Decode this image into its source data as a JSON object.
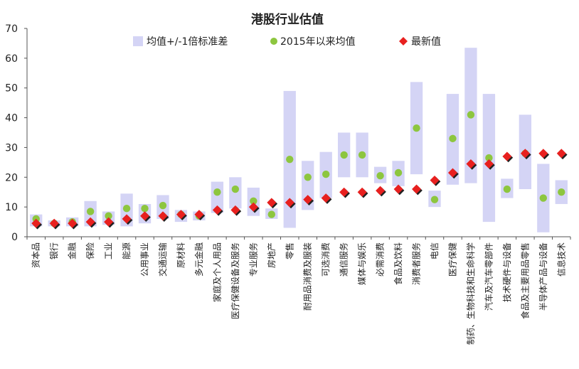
{
  "chart_data": {
    "type": "scatter",
    "title": "港股行业估值",
    "xlabel": "",
    "ylabel": "",
    "ylim": [
      0,
      70
    ],
    "yticks": [
      0,
      10,
      20,
      30,
      40,
      50,
      60,
      70
    ],
    "grid": false,
    "legend_position": "top",
    "categories": [
      "资本品",
      "银行",
      "金融",
      "保险",
      "工业",
      "能源",
      "公用事业",
      "交通运输",
      "原材料",
      "多元金融",
      "家庭及个人用品",
      "医疗保健设备及服务",
      "专业服务",
      "房地产",
      "零售",
      "耐用品消费及服装",
      "可选消费",
      "通信服务",
      "媒体与娱乐",
      "必需消费",
      "食品及饮料",
      "消费者服务",
      "电信",
      "医疗保健",
      "制药、生物科技和生命科学",
      "汽车及汽车零部件",
      "技术硬件与设备",
      "食品及主要用品零售",
      "半导体产品与设备",
      "信息技术"
    ],
    "series": [
      {
        "name": "均值+/-1倍标准差",
        "color": "#d4d4f5",
        "low": [
          3.5,
          3.5,
          3.5,
          3.5,
          4,
          3.5,
          4.5,
          6,
          5,
          5.5,
          8,
          9.5,
          7,
          6,
          3,
          9,
          13,
          20,
          20,
          18,
          17,
          21,
          10,
          17.5,
          18,
          5,
          13,
          16,
          1.5,
          11
        ],
        "high": [
          7.5,
          5.5,
          6.5,
          12,
          8.5,
          14.5,
          11,
          14,
          9,
          8.5,
          18.5,
          20,
          16.5,
          9.5,
          49,
          25.5,
          28.5,
          35,
          35,
          23.5,
          25.5,
          52,
          15.5,
          48,
          63.5,
          48,
          19.5,
          41,
          24.5,
          19
        ]
      },
      {
        "name": "2015年以来均值",
        "color": "#8dc63f",
        "values": [
          6,
          4.5,
          5,
          8.5,
          7,
          9.5,
          9.5,
          10.5,
          7.5,
          7,
          15,
          16,
          12,
          7.5,
          26,
          20,
          21,
          27.5,
          27.5,
          20.5,
          21.5,
          36.5,
          12.5,
          33,
          41,
          26.5,
          16,
          28,
          13,
          15
        ]
      },
      {
        "name": "最新值",
        "color": "#e8201f",
        "values": [
          4.5,
          4.5,
          4.5,
          5,
          5,
          6,
          7,
          7,
          7.5,
          7.5,
          9,
          9,
          10,
          11.5,
          11.5,
          12.5,
          13,
          15,
          15,
          15.5,
          16,
          16,
          19,
          21.5,
          24.5,
          24.5,
          27,
          28,
          28,
          28
        ]
      }
    ]
  }
}
